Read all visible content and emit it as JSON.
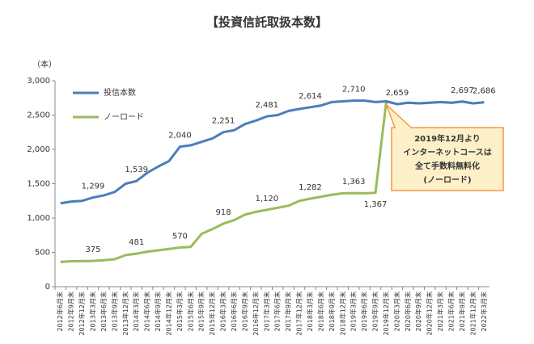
{
  "chart_data": {
    "type": "line",
    "title": "【投資信託取扱本数】",
    "y_unit": "（本）",
    "categories": [
      "2012年6月末",
      "2012年9月末",
      "2012年12月末",
      "2013年3月末",
      "2013年6月末",
      "2013年9月末",
      "2013年12月末",
      "2014年3月末",
      "2014年6月末",
      "2014年9月末",
      "2014年12月末",
      "2015年3月末",
      "2015年6月末",
      "2015年9月末",
      "2015年12月末",
      "2016年3月末",
      "2016年6月末",
      "2016年9月末",
      "2016年12月末",
      "2017年3月末",
      "2017年6月末",
      "2017年9月末",
      "2017年12月末",
      "2018年3月末",
      "2018年6月末",
      "2018年9月末",
      "2018年12月末",
      "2019年3月末",
      "2019年6月末",
      "2019年9月末",
      "2019年12月末",
      "2020年3月末",
      "2020年6月末",
      "2020年9月末",
      "2020年12月末",
      "2021年3月末",
      "2021年6月末",
      "2021年9月末",
      "2021年12月末",
      "2022年3月末"
    ],
    "series": [
      {
        "name": "ノーロード",
        "color": "#9bbb59",
        "values": [
          360,
          370,
          372,
          375,
          385,
          400,
          460,
          481,
          510,
          530,
          550,
          570,
          580,
          770,
          840,
          918,
          970,
          1050,
          1090,
          1120,
          1150,
          1180,
          1250,
          1282,
          1310,
          1340,
          1360,
          1363,
          1360,
          1367,
          2700,
          2659,
          2680,
          2670,
          2680,
          2690,
          2680,
          2697,
          2670,
          2686
        ],
        "value_labels": [
          null,
          null,
          null,
          "375",
          null,
          null,
          null,
          "481",
          null,
          null,
          null,
          "570",
          null,
          null,
          null,
          "918",
          null,
          null,
          null,
          "1,120",
          null,
          null,
          null,
          "1,282",
          null,
          null,
          null,
          "1,363",
          null,
          "1,367",
          null,
          null,
          null,
          null,
          null,
          null,
          null,
          null,
          null,
          null
        ]
      },
      {
        "name": "投信本数",
        "color": "#4a7ebb",
        "values": [
          1215,
          1240,
          1250,
          1299,
          1330,
          1380,
          1500,
          1539,
          1660,
          1750,
          1830,
          2040,
          2060,
          2110,
          2160,
          2251,
          2280,
          2370,
          2420,
          2481,
          2500,
          2560,
          2590,
          2614,
          2640,
          2690,
          2700,
          2710,
          2710,
          2690,
          2700,
          2659,
          2680,
          2670,
          2680,
          2690,
          2680,
          2697,
          2670,
          2686
        ],
        "value_labels": [
          null,
          null,
          null,
          "1,299",
          null,
          null,
          null,
          "1,539",
          null,
          null,
          null,
          "2,040",
          null,
          null,
          null,
          "2,251",
          null,
          null,
          null,
          "2,481",
          null,
          null,
          null,
          "2,614",
          null,
          null,
          null,
          "2,710",
          null,
          null,
          null,
          "2,659",
          null,
          null,
          null,
          null,
          null,
          "2,697",
          null,
          "2,686"
        ]
      }
    ],
    "ylim": [
      0,
      3000
    ],
    "yticks": [
      0,
      500,
      {
        "value": 1000,
        "label": "1,000"
      },
      {
        "value": 1500,
        "label": "1,500"
      },
      {
        "value": 2000,
        "label": "2,000"
      },
      {
        "value": 2500,
        "label": "2,500"
      },
      {
        "value": 3000,
        "label": "3,000"
      }
    ],
    "grid": false,
    "legend": "top-left",
    "annotation": {
      "lines": [
        "2019年12月より",
        "インターネットコースは",
        "全て手数料無料化",
        "(ノーロード)"
      ],
      "category_index": 30
    }
  }
}
